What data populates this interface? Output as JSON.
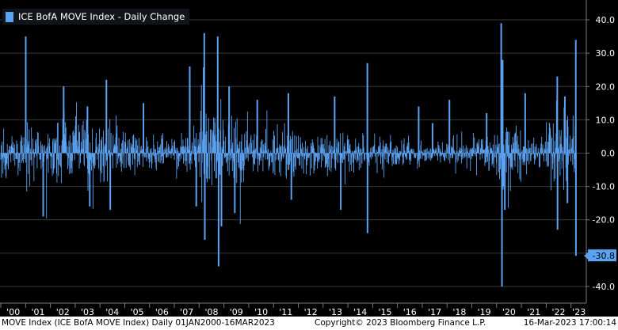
{
  "legend": {
    "label": "ICE BofA MOVE Index - Daily Change",
    "color": "#5ba3f2"
  },
  "footer": {
    "left": "MOVE Index (ICE BofA MOVE Index)  Daily 01JAN2000-16MAR2023",
    "center": "Copyright© 2023 Bloomberg Finance L.P.",
    "right": "16-Mar-2023 17:00:14"
  },
  "last_value_label": "-30.8",
  "chart_data": {
    "type": "bar",
    "title": "ICE BofA MOVE Index - Daily Change",
    "xlabel": "",
    "ylabel": "",
    "ylim": [
      -45,
      45
    ],
    "yticks": [
      40.0,
      30.0,
      20.0,
      10.0,
      0.0,
      -10.0,
      -20.0,
      -30.0,
      -40.0
    ],
    "ytick_labels": [
      "40.0",
      "30.0",
      "20.0",
      "10.0",
      "0.0",
      "-10.0",
      "-20.0",
      "-30.0",
      "-40.0"
    ],
    "xtick_labels": [
      "'00",
      "'01",
      "'02",
      "'03",
      "'04",
      "'05",
      "'06",
      "'07",
      "'08",
      "'09",
      "'10",
      "'11",
      "'12",
      "'13",
      "'14",
      "'15",
      "'16",
      "'17",
      "'18",
      "'19",
      "'20",
      "'21",
      "'22",
      "'23"
    ],
    "x_range": [
      "2000-01-01",
      "2023-03-16"
    ],
    "grid": true,
    "last_value": -30.8,
    "series": [
      {
        "name": "ICE BofA MOVE Index - Daily Change",
        "color": "#5ba3f2",
        "yearly_typical_amplitude": {
          "2000": 6,
          "2001": 8,
          "2002": 9,
          "2003": 9,
          "2004": 8,
          "2005": 6,
          "2006": 4,
          "2007": 6,
          "2008": 12,
          "2009": 9,
          "2010": 6,
          "2011": 7,
          "2012": 5,
          "2013": 6,
          "2014": 4,
          "2015": 5,
          "2016": 4,
          "2017": 3,
          "2018": 4,
          "2019": 5,
          "2020": 8,
          "2021": 4,
          "2022": 9,
          "2023": 9
        },
        "notable_daily_changes": [
          {
            "date": "2001-01-03",
            "value": 35
          },
          {
            "date": "2001-09-17",
            "value": -19
          },
          {
            "date": "2002-07-15",
            "value": 20
          },
          {
            "date": "2003-07-01",
            "value": 14
          },
          {
            "date": "2003-08-04",
            "value": -16
          },
          {
            "date": "2004-04-05",
            "value": 22
          },
          {
            "date": "2004-06-01",
            "value": -17
          },
          {
            "date": "2005-10-03",
            "value": 15
          },
          {
            "date": "2007-08-16",
            "value": 26
          },
          {
            "date": "2007-11-20",
            "value": -16
          },
          {
            "date": "2008-03-17",
            "value": 36
          },
          {
            "date": "2008-03-25",
            "value": -26
          },
          {
            "date": "2008-10-01",
            "value": 35
          },
          {
            "date": "2008-10-14",
            "value": -34
          },
          {
            "date": "2008-11-25",
            "value": -22
          },
          {
            "date": "2009-03-18",
            "value": 20
          },
          {
            "date": "2009-06-10",
            "value": -18
          },
          {
            "date": "2010-05-07",
            "value": 16
          },
          {
            "date": "2011-08-08",
            "value": 18
          },
          {
            "date": "2011-09-21",
            "value": -14
          },
          {
            "date": "2013-06-20",
            "value": 17
          },
          {
            "date": "2013-09-18",
            "value": -17
          },
          {
            "date": "2014-10-15",
            "value": 27
          },
          {
            "date": "2014-10-17",
            "value": -24
          },
          {
            "date": "2016-11-09",
            "value": 14
          },
          {
            "date": "2017-06-01",
            "value": 9
          },
          {
            "date": "2018-02-05",
            "value": 16
          },
          {
            "date": "2019-08-07",
            "value": 12
          },
          {
            "date": "2020-03-09",
            "value": 39
          },
          {
            "date": "2020-03-20",
            "value": -40
          },
          {
            "date": "2020-03-30",
            "value": 28
          },
          {
            "date": "2020-04-08",
            "value": -10
          },
          {
            "date": "2020-05-01",
            "value": -17
          },
          {
            "date": "2021-02-25",
            "value": 18
          },
          {
            "date": "2022-06-13",
            "value": 23
          },
          {
            "date": "2022-06-17",
            "value": -23
          },
          {
            "date": "2022-10-03",
            "value": 17
          },
          {
            "date": "2022-11-10",
            "value": -15
          },
          {
            "date": "2023-03-13",
            "value": 34
          },
          {
            "date": "2023-03-15",
            "value": -30.8
          }
        ]
      }
    ]
  }
}
